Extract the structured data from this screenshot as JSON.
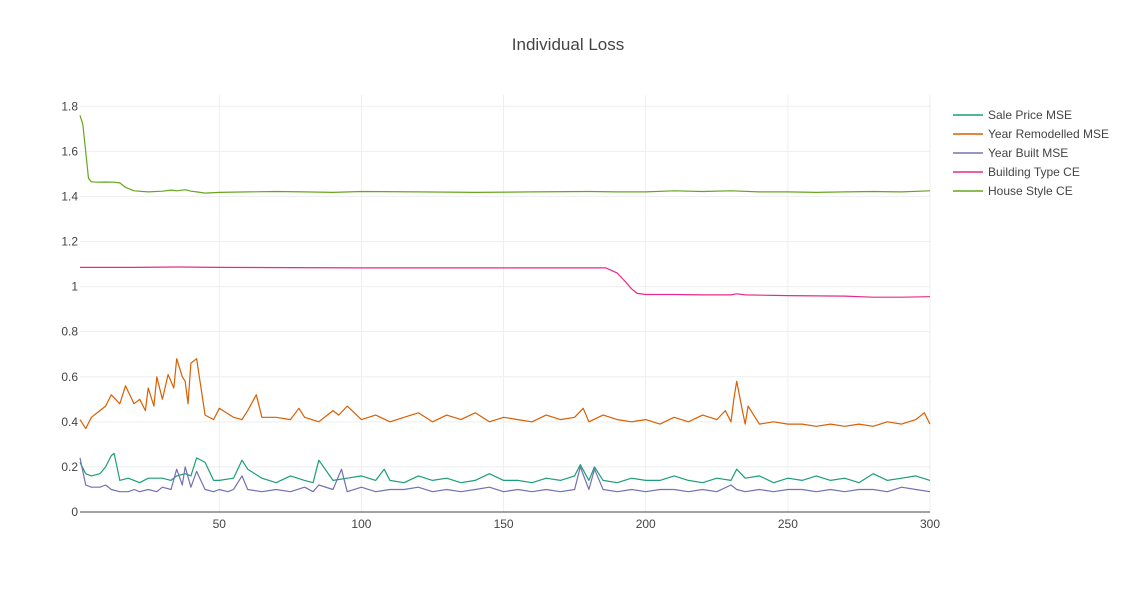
{
  "chart_data": {
    "type": "line",
    "title": "Individual Loss",
    "xlabel": "",
    "ylabel": "",
    "xlim": [
      1,
      300
    ],
    "ylim": [
      0,
      1.85
    ],
    "x_ticks": [
      50,
      100,
      150,
      200,
      250,
      300
    ],
    "y_ticks": [
      0,
      0.2,
      0.4,
      0.6,
      0.8,
      1,
      1.2,
      1.4,
      1.6,
      1.8
    ],
    "y_tick_labels": [
      "0",
      "0.2",
      "0.4",
      "0.6",
      "0.8",
      "1",
      "1.2",
      "1.4",
      "1.6",
      "1.8"
    ],
    "grid": true,
    "legend_position": "top-right",
    "series": [
      {
        "name": "Sale Price MSE",
        "color": "#1b9e77",
        "x": [
          1,
          3,
          5,
          8,
          10,
          12,
          13,
          14,
          15,
          18,
          22,
          25,
          30,
          33,
          35,
          38,
          40,
          42,
          45,
          48,
          50,
          55,
          58,
          60,
          65,
          70,
          75,
          80,
          83,
          85,
          90,
          95,
          100,
          105,
          108,
          110,
          115,
          120,
          125,
          130,
          135,
          140,
          145,
          150,
          155,
          160,
          165,
          170,
          175,
          177,
          180,
          182,
          185,
          190,
          195,
          200,
          205,
          210,
          215,
          220,
          225,
          230,
          232,
          235,
          240,
          245,
          250,
          255,
          260,
          265,
          270,
          275,
          280,
          285,
          290,
          295,
          300
        ],
        "y": [
          0.22,
          0.17,
          0.16,
          0.17,
          0.2,
          0.25,
          0.26,
          0.2,
          0.14,
          0.15,
          0.13,
          0.15,
          0.15,
          0.14,
          0.16,
          0.17,
          0.16,
          0.24,
          0.22,
          0.14,
          0.14,
          0.15,
          0.23,
          0.19,
          0.15,
          0.13,
          0.16,
          0.14,
          0.13,
          0.23,
          0.14,
          0.15,
          0.16,
          0.14,
          0.19,
          0.14,
          0.13,
          0.16,
          0.14,
          0.15,
          0.13,
          0.14,
          0.17,
          0.14,
          0.14,
          0.13,
          0.15,
          0.14,
          0.16,
          0.21,
          0.14,
          0.2,
          0.14,
          0.13,
          0.15,
          0.14,
          0.14,
          0.16,
          0.14,
          0.13,
          0.15,
          0.14,
          0.19,
          0.15,
          0.16,
          0.13,
          0.15,
          0.14,
          0.16,
          0.14,
          0.15,
          0.13,
          0.17,
          0.14,
          0.15,
          0.16,
          0.14
        ]
      },
      {
        "name": "Year Remodelled MSE",
        "color": "#d95f02",
        "x": [
          1,
          3,
          5,
          8,
          10,
          12,
          15,
          17,
          20,
          22,
          24,
          25,
          27,
          28,
          30,
          32,
          34,
          35,
          37,
          38,
          39,
          40,
          42,
          45,
          48,
          50,
          55,
          58,
          60,
          63,
          65,
          70,
          75,
          78,
          80,
          85,
          90,
          92,
          95,
          100,
          105,
          110,
          115,
          120,
          125,
          130,
          135,
          140,
          145,
          150,
          155,
          160,
          165,
          170,
          175,
          178,
          180,
          185,
          190,
          195,
          200,
          205,
          210,
          215,
          220,
          225,
          228,
          230,
          231,
          232,
          234,
          235,
          236,
          238,
          240,
          245,
          250,
          255,
          260,
          265,
          270,
          275,
          280,
          285,
          290,
          295,
          298,
          300
        ],
        "y": [
          0.41,
          0.37,
          0.42,
          0.45,
          0.47,
          0.52,
          0.48,
          0.56,
          0.48,
          0.5,
          0.45,
          0.55,
          0.47,
          0.6,
          0.5,
          0.61,
          0.55,
          0.68,
          0.6,
          0.58,
          0.48,
          0.66,
          0.68,
          0.43,
          0.41,
          0.46,
          0.42,
          0.41,
          0.45,
          0.52,
          0.42,
          0.42,
          0.41,
          0.46,
          0.42,
          0.4,
          0.45,
          0.43,
          0.47,
          0.41,
          0.43,
          0.4,
          0.42,
          0.44,
          0.4,
          0.43,
          0.41,
          0.44,
          0.4,
          0.42,
          0.41,
          0.4,
          0.43,
          0.41,
          0.42,
          0.46,
          0.4,
          0.43,
          0.41,
          0.4,
          0.41,
          0.39,
          0.42,
          0.4,
          0.43,
          0.41,
          0.45,
          0.4,
          0.5,
          0.58,
          0.45,
          0.39,
          0.47,
          0.43,
          0.39,
          0.4,
          0.39,
          0.39,
          0.38,
          0.39,
          0.38,
          0.39,
          0.38,
          0.4,
          0.39,
          0.41,
          0.44,
          0.39
        ]
      },
      {
        "name": "Year Built MSE",
        "color": "#7570b3",
        "x": [
          1,
          3,
          5,
          8,
          10,
          12,
          15,
          18,
          20,
          22,
          25,
          28,
          30,
          33,
          35,
          37,
          38,
          40,
          42,
          45,
          48,
          50,
          53,
          55,
          58,
          60,
          65,
          70,
          75,
          80,
          83,
          85,
          90,
          93,
          95,
          100,
          105,
          110,
          115,
          120,
          125,
          130,
          135,
          140,
          145,
          150,
          155,
          160,
          165,
          170,
          175,
          177,
          180,
          182,
          185,
          190,
          195,
          200,
          205,
          210,
          215,
          220,
          225,
          230,
          232,
          235,
          240,
          245,
          250,
          255,
          260,
          265,
          270,
          275,
          280,
          285,
          290,
          295,
          300
        ],
        "y": [
          0.24,
          0.12,
          0.11,
          0.11,
          0.12,
          0.1,
          0.09,
          0.09,
          0.1,
          0.09,
          0.1,
          0.09,
          0.11,
          0.1,
          0.19,
          0.12,
          0.2,
          0.11,
          0.18,
          0.1,
          0.09,
          0.1,
          0.09,
          0.1,
          0.16,
          0.1,
          0.09,
          0.1,
          0.09,
          0.11,
          0.09,
          0.12,
          0.1,
          0.19,
          0.09,
          0.11,
          0.09,
          0.1,
          0.1,
          0.11,
          0.09,
          0.1,
          0.09,
          0.1,
          0.11,
          0.09,
          0.1,
          0.09,
          0.1,
          0.09,
          0.1,
          0.2,
          0.1,
          0.19,
          0.1,
          0.09,
          0.1,
          0.09,
          0.1,
          0.1,
          0.09,
          0.1,
          0.09,
          0.12,
          0.1,
          0.09,
          0.1,
          0.09,
          0.1,
          0.1,
          0.09,
          0.1,
          0.09,
          0.1,
          0.1,
          0.09,
          0.11,
          0.1,
          0.09
        ]
      },
      {
        "name": "Building Type CE",
        "color": "#e7298a",
        "x": [
          1,
          20,
          35,
          50,
          100,
          150,
          186,
          190,
          193,
          195,
          197,
          200,
          210,
          220,
          230,
          232,
          235,
          250,
          270,
          280,
          290,
          300
        ],
        "y": [
          1.085,
          1.085,
          1.087,
          1.085,
          1.083,
          1.083,
          1.083,
          1.06,
          1.02,
          0.99,
          0.97,
          0.965,
          0.965,
          0.963,
          0.963,
          0.968,
          0.963,
          0.96,
          0.958,
          0.953,
          0.953,
          0.955
        ]
      },
      {
        "name": "House Style CE",
        "color": "#66a61e",
        "x": [
          1,
          2,
          3,
          4,
          5,
          7,
          10,
          13,
          15,
          17,
          20,
          25,
          30,
          33,
          35,
          38,
          40,
          42,
          45,
          50,
          60,
          70,
          80,
          90,
          100,
          120,
          140,
          160,
          180,
          190,
          200,
          210,
          220,
          230,
          240,
          250,
          260,
          270,
          280,
          290,
          300
        ],
        "y": [
          1.76,
          1.72,
          1.6,
          1.48,
          1.465,
          1.463,
          1.464,
          1.463,
          1.46,
          1.44,
          1.425,
          1.42,
          1.423,
          1.428,
          1.425,
          1.43,
          1.423,
          1.42,
          1.415,
          1.418,
          1.42,
          1.422,
          1.42,
          1.418,
          1.422,
          1.42,
          1.418,
          1.42,
          1.422,
          1.42,
          1.42,
          1.425,
          1.422,
          1.425,
          1.42,
          1.42,
          1.418,
          1.42,
          1.422,
          1.42,
          1.425
        ]
      }
    ]
  }
}
